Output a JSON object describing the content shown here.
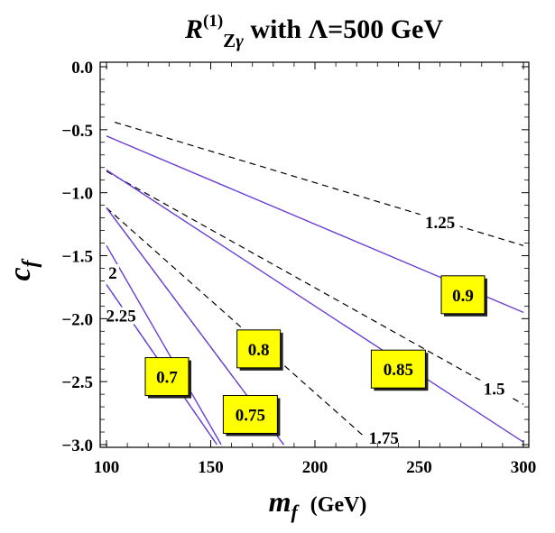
{
  "chart_data": {
    "type": "line",
    "title": {
      "symbol": "R",
      "superscript": "(1)",
      "subscript_main": "Z",
      "subscript_greek": "γ",
      "rest": " with Λ=500 GeV"
    },
    "xlabel": {
      "symbol": "m",
      "subscript": "f",
      "unit": "(GeV)"
    },
    "ylabel": {
      "symbol": "c",
      "subscript": "f"
    },
    "xlim": [
      100,
      300
    ],
    "ylim": [
      -3.0,
      0.0
    ],
    "xticks": [
      100,
      150,
      200,
      250,
      300
    ],
    "yticks": [
      0.0,
      -0.5,
      -1.0,
      -1.5,
      -2.0,
      -2.5,
      -3.0
    ],
    "ytick_labels": [
      "0.0",
      "−0.5",
      "−1.0",
      "−1.5",
      "−2.0",
      "−2.5",
      "−3.0"
    ],
    "grid": false,
    "solid_color": "#6a3fd6",
    "dashed_color": "#000000",
    "label_box_color": "#ffff00",
    "solid_series": [
      {
        "name": "0.9",
        "x": [
          100,
          300
        ],
        "y": [
          -0.55,
          -1.95
        ]
      },
      {
        "name": "0.85",
        "x": [
          100,
          300
        ],
        "y": [
          -0.82,
          -2.98
        ]
      },
      {
        "name": "0.8",
        "x": [
          100,
          185
        ],
        "y": [
          -1.12,
          -3.0
        ]
      },
      {
        "name": "0.75",
        "x": [
          100,
          155
        ],
        "y": [
          -1.42,
          -3.0
        ]
      },
      {
        "name": "0.7",
        "x": [
          100,
          153
        ],
        "y": [
          -1.73,
          -3.0
        ]
      }
    ],
    "dashed_series": [
      {
        "name": "1.25",
        "x": [
          104,
          300
        ],
        "y": [
          -0.44,
          -1.42
        ]
      },
      {
        "name": "1.5",
        "x": [
          100,
          300
        ],
        "y": [
          -0.83,
          -2.68
        ]
      },
      {
        "name": "1.75",
        "x": [
          100,
          228
        ],
        "y": [
          -1.12,
          -3.0
        ]
      },
      {
        "name": "2",
        "x": [
          100,
          185
        ],
        "y": [
          -1.12,
          -3.0
        ]
      },
      {
        "name": "2.25",
        "x": [
          100,
          153
        ],
        "y": [
          -1.73,
          -3.0
        ]
      }
    ],
    "solid_labels": [
      {
        "text": "0.9",
        "x": 271,
        "y": -1.81
      },
      {
        "text": "0.85",
        "x": 240,
        "y": -2.4
      },
      {
        "text": "0.8",
        "x": 173,
        "y": -2.24
      },
      {
        "text": "0.75",
        "x": 169,
        "y": -2.76
      },
      {
        "text": "0.7",
        "x": 129,
        "y": -2.46
      }
    ],
    "dashed_labels": [
      {
        "text": "1.25",
        "x": 260,
        "y": -1.24
      },
      {
        "text": "1.5",
        "x": 286,
        "y": -2.56
      },
      {
        "text": "1.75",
        "x": 233,
        "y": -2.95
      },
      {
        "text": "2",
        "x": 103,
        "y": -1.64
      },
      {
        "text": "2.25",
        "x": 107,
        "y": -1.98
      }
    ]
  }
}
